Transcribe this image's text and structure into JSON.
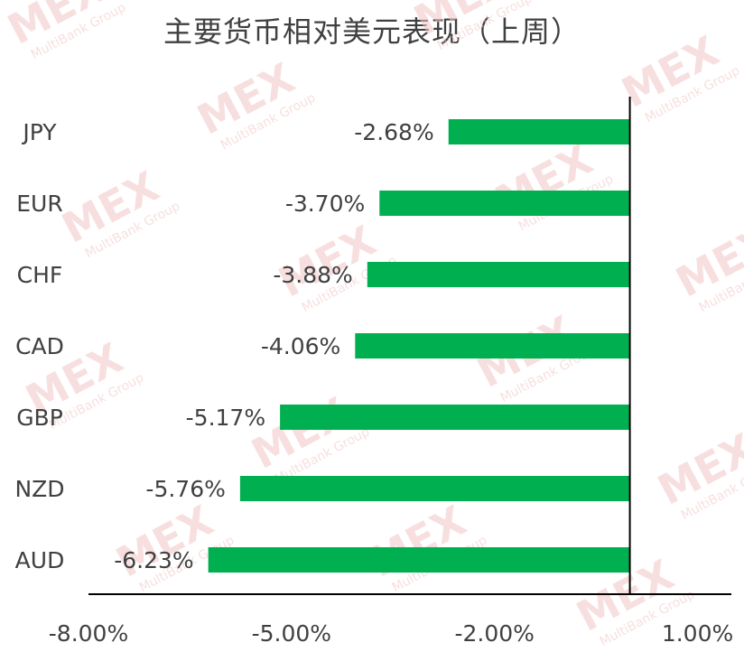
{
  "chart_data": {
    "type": "bar",
    "orientation": "horizontal",
    "title": "主要货币相对美元表现（上周）",
    "categories": [
      "JPY",
      "EUR",
      "CHF",
      "CAD",
      "GBP",
      "NZD",
      "AUD"
    ],
    "values": [
      -2.68,
      -3.7,
      -3.88,
      -4.06,
      -5.17,
      -5.76,
      -6.23
    ],
    "data_labels": [
      "-2.68%",
      "-3.70%",
      "-3.88%",
      "-4.06%",
      "-5.17%",
      "-5.76%",
      "-6.23%"
    ],
    "x_ticks": [
      -8,
      -5,
      -2,
      1
    ],
    "x_tick_labels": [
      "-8.00%",
      "-5.00%",
      "-2.00%",
      "1.00%"
    ],
    "xlim": [
      -8,
      1.5
    ],
    "bar_color": "#00B050",
    "grid": false
  },
  "watermark": {
    "logo_text": "MEX",
    "sub_text": "MultiBank Group",
    "color": "#f2c6c6"
  }
}
